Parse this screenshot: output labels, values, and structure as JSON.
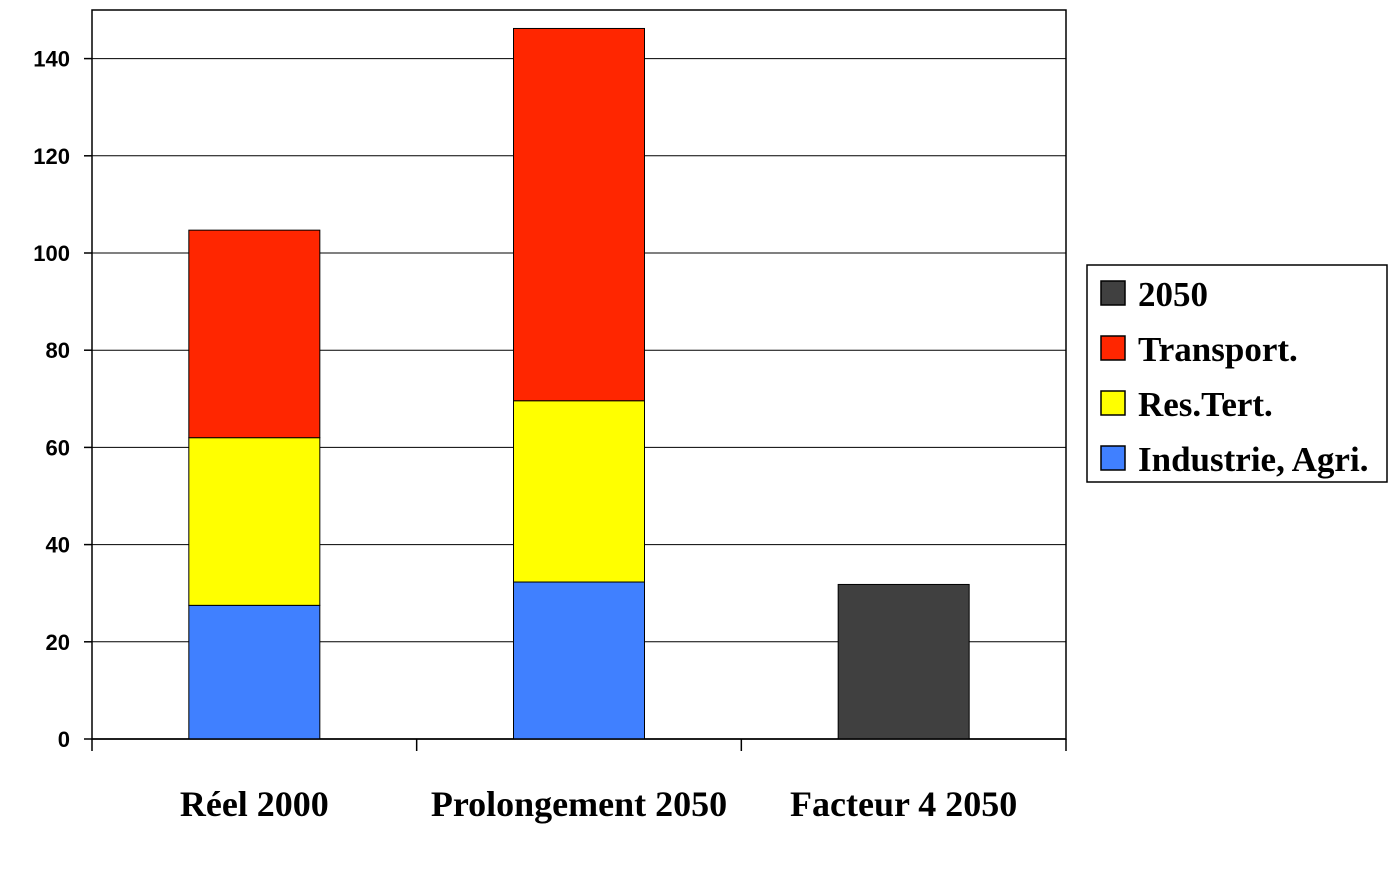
{
  "chart_data": {
    "type": "bar",
    "stacked": true,
    "categories": [
      "Réel 2000",
      "Prolongement 2050",
      "Facteur 4 2050"
    ],
    "series": [
      {
        "name": "Industrie, Agri.",
        "values": [
          27.5,
          32.3,
          0
        ],
        "color": "#4080FF"
      },
      {
        "name": "Res.Tert.",
        "values": [
          34.5,
          37.3,
          0
        ],
        "color": "#FFFF00"
      },
      {
        "name": "Transport.",
        "values": [
          42.7,
          76.6,
          0
        ],
        "color": "#FF2600"
      },
      {
        "name": "2050",
        "values": [
          0,
          0,
          31.8
        ],
        "color": "#404040"
      }
    ],
    "legend_order": [
      "2050",
      "Transport.",
      "Res.Tert.",
      "Industrie, Agri."
    ],
    "legend_position": "right",
    "yticks": [
      0,
      20,
      40,
      60,
      80,
      100,
      120,
      140
    ],
    "ylim": [
      0,
      150
    ],
    "grid": true,
    "title": "",
    "xlabel": "",
    "ylabel": ""
  }
}
